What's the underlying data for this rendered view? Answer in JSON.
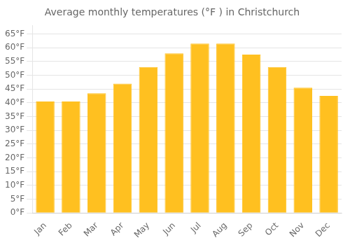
{
  "chart_data": {
    "type": "bar",
    "title": "Average monthly temperatures (°F ) in Christchurch",
    "categories": [
      "Jan",
      "Feb",
      "Mar",
      "Apr",
      "May",
      "Jun",
      "Jul",
      "Aug",
      "Sep",
      "Oct",
      "Nov",
      "Dec"
    ],
    "values": [
      40.5,
      40.5,
      43.5,
      47.0,
      53.0,
      58.0,
      61.5,
      61.5,
      57.5,
      53.0,
      45.5,
      42.5
    ],
    "color": "#FFC020",
    "ylim": [
      0,
      68
    ],
    "yticks": [
      {
        "value": 0,
        "label": "0°F"
      },
      {
        "value": 5,
        "label": "5°F"
      },
      {
        "value": 10,
        "label": "10°F"
      },
      {
        "value": 15,
        "label": "15°F"
      },
      {
        "value": 20,
        "label": "20°F"
      },
      {
        "value": 25,
        "label": "25°F"
      },
      {
        "value": 30,
        "label": "30°F"
      },
      {
        "value": 35,
        "label": "35°F"
      },
      {
        "value": 40,
        "label": "40°F"
      },
      {
        "value": 45,
        "label": "45°F"
      },
      {
        "value": 50,
        "label": "50°F"
      },
      {
        "value": 55,
        "label": "55°F"
      },
      {
        "value": 60,
        "label": "60°F"
      },
      {
        "value": 65,
        "label": "65°F"
      }
    ],
    "grid": true
  }
}
